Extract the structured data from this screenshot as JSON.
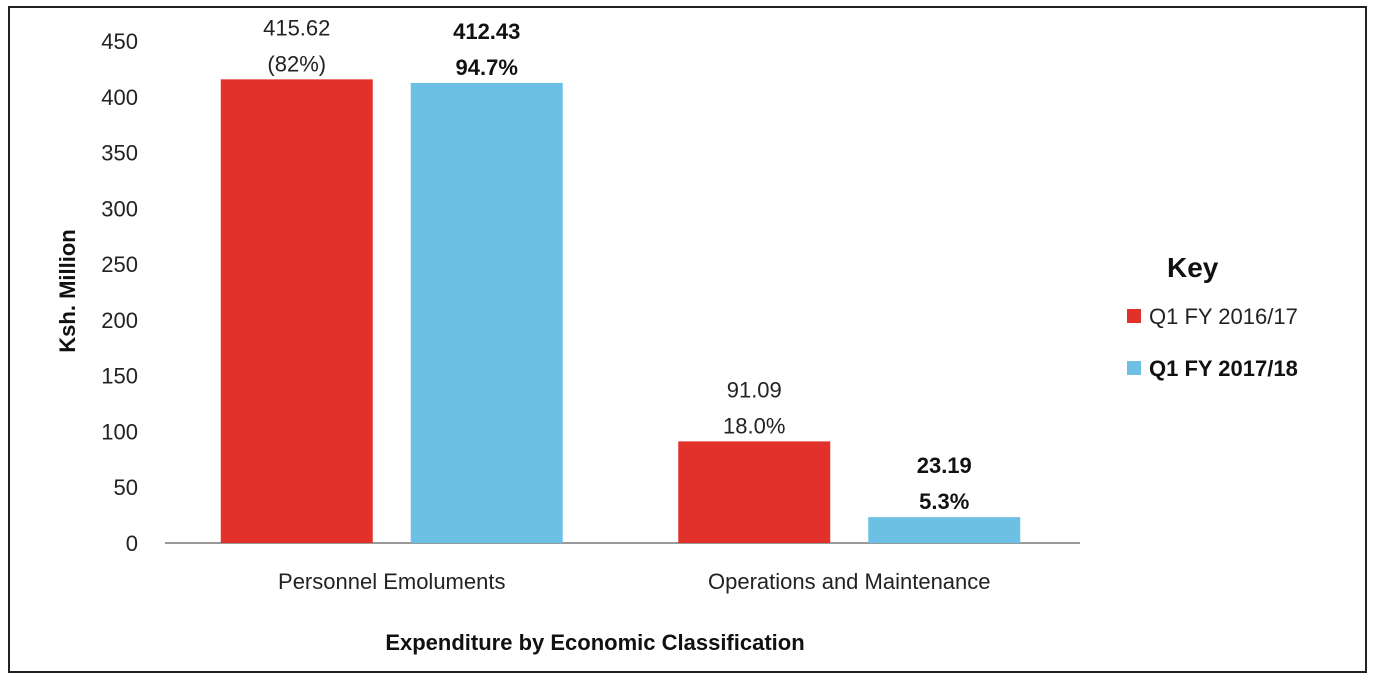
{
  "chart_data": {
    "type": "bar",
    "categories": [
      "Personnel Emoluments",
      "Operations and Maintenance"
    ],
    "series": [
      {
        "name": "Q1 FY 2016/17",
        "values": [
          415.62,
          91.09
        ],
        "color": "#e2302a",
        "data_labels": [
          [
            "415.62",
            "(82%)"
          ],
          [
            "91.09",
            "18.0%"
          ]
        ],
        "bold": false
      },
      {
        "name": "Q1 FY 2017/18",
        "values": [
          412.43,
          23.19
        ],
        "color": "#6bc0e3",
        "data_labels": [
          [
            "412.43",
            "94.7%"
          ],
          [
            "23.19",
            "5.3%"
          ]
        ],
        "bold": true
      }
    ],
    "ylim": [
      0,
      450
    ],
    "yticks": [
      "0",
      "50",
      "100",
      "150",
      "200",
      "250",
      "300",
      "350",
      "400",
      "450"
    ],
    "ylabel": "Ksh. Million",
    "xlabel": "Expenditure by Economic Classification",
    "legend_title": "Key",
    "legend_position": "right",
    "grid": false
  }
}
